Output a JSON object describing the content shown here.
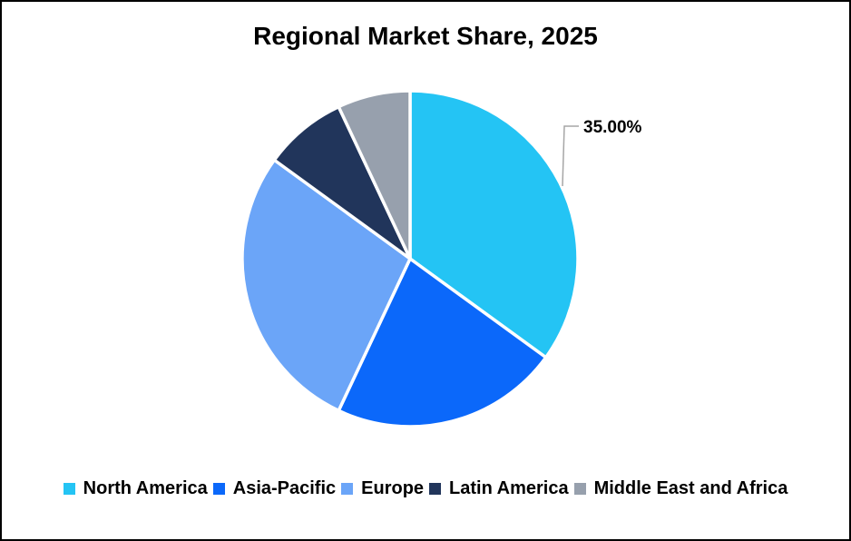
{
  "title": "Regional Market Share, 2025",
  "chart_data": {
    "type": "pie",
    "title": "Regional Market Share, 2025",
    "start_angle_deg": 0,
    "direction": "clockwise",
    "categories": [
      "North America",
      "Asia-Pacific",
      "Europe",
      "Latin America",
      "Middle East and Africa"
    ],
    "values": [
      35,
      22,
      28,
      8,
      7
    ],
    "unit": "%",
    "colors": [
      "#24C4F4",
      "#0B68FA",
      "#6BA5F8",
      "#21355B",
      "#97A0AD"
    ],
    "data_labels": [
      {
        "category": "North America",
        "text": "35.00%"
      }
    ],
    "legend_position": "bottom",
    "background_color": "#FFFFFF",
    "leader_line_color": "#A6A6A6"
  }
}
